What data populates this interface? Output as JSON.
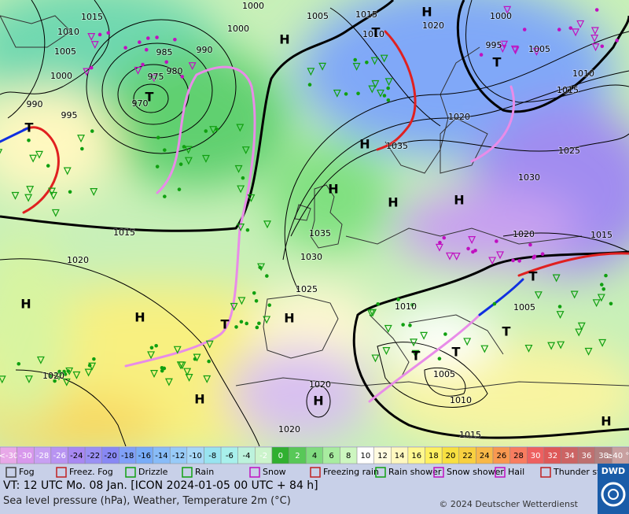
{
  "map": {
    "pressure_labels": [
      "1015",
      "1010",
      "1005",
      "1000",
      "990",
      "995",
      "985",
      "975",
      "980",
      "970",
      "990",
      "1000",
      "1000",
      "1005",
      "1015",
      "1010",
      "1020",
      "995",
      "1000",
      "1005",
      "1015",
      "1010",
      "1020",
      "1025",
      "1030",
      "1035",
      "1035",
      "1030",
      "1025",
      "1015",
      "1020",
      "1020",
      "1015",
      "1010",
      "1005",
      "1005",
      "1010",
      "1020",
      "1015",
      "1020",
      "1020"
    ],
    "high_labels": [
      "H",
      "H",
      "H",
      "H",
      "H",
      "H",
      "H",
      "H",
      "H",
      "H",
      "H",
      "H"
    ],
    "low_labels": [
      "T",
      "T",
      "T",
      "T",
      "T",
      "T",
      "T",
      "T",
      "T"
    ]
  },
  "temperature_scale": {
    "low_end": "<-30",
    "values": [
      -30,
      -28,
      -26,
      -24,
      -22,
      -20,
      -18,
      -16,
      -14,
      -12,
      -10,
      -8,
      -6,
      -4,
      -2,
      0,
      2,
      4,
      6,
      8,
      10,
      12,
      14,
      16,
      18,
      20,
      22,
      24,
      26,
      28,
      30,
      32,
      34,
      36,
      38
    ],
    "high_end": "≥40 °C",
    "colors": [
      "#e8a8e8",
      "#d898ec",
      "#c8a0f2",
      "#b894f2",
      "#a888f2",
      "#9a90f4",
      "#8888f4",
      "#80a0f8",
      "#78acf8",
      "#88bcf8",
      "#98cbf8",
      "#a8d8f8",
      "#98e4f0",
      "#a8f0ec",
      "#bcf2dc",
      "#ccf4cc",
      "#30b030",
      "#58c858",
      "#80dc80",
      "#a8eca0",
      "#cdf6c0",
      "#ffffff",
      "#fffbe0",
      "#fff8c0",
      "#fff890",
      "#fff060",
      "#f8e040",
      "#f8d040",
      "#f8b848",
      "#f89850",
      "#f87c60",
      "#ee6060",
      "#de5858",
      "#cc6464",
      "#be7070",
      "#b08080",
      "#c8a0a0"
    ]
  },
  "weather_legend": [
    "Fog",
    "Freez. Fog",
    "Drizzle",
    "Rain",
    "Snow",
    "Freezing rain",
    "Rain shower",
    "Snow shower",
    "Hail",
    "Thunder storm"
  ],
  "footer": {
    "valid_time": "VT: 12 UTC Mo.  08 Jan. [ICON 2024-01-05  00 UTC + 84 h]",
    "description": "Sea level pressure (hPa), Weather, Temperature 2m (°C)",
    "copyright": "© 2024 Deutscher Wetterdienst",
    "logo": "DWD"
  }
}
